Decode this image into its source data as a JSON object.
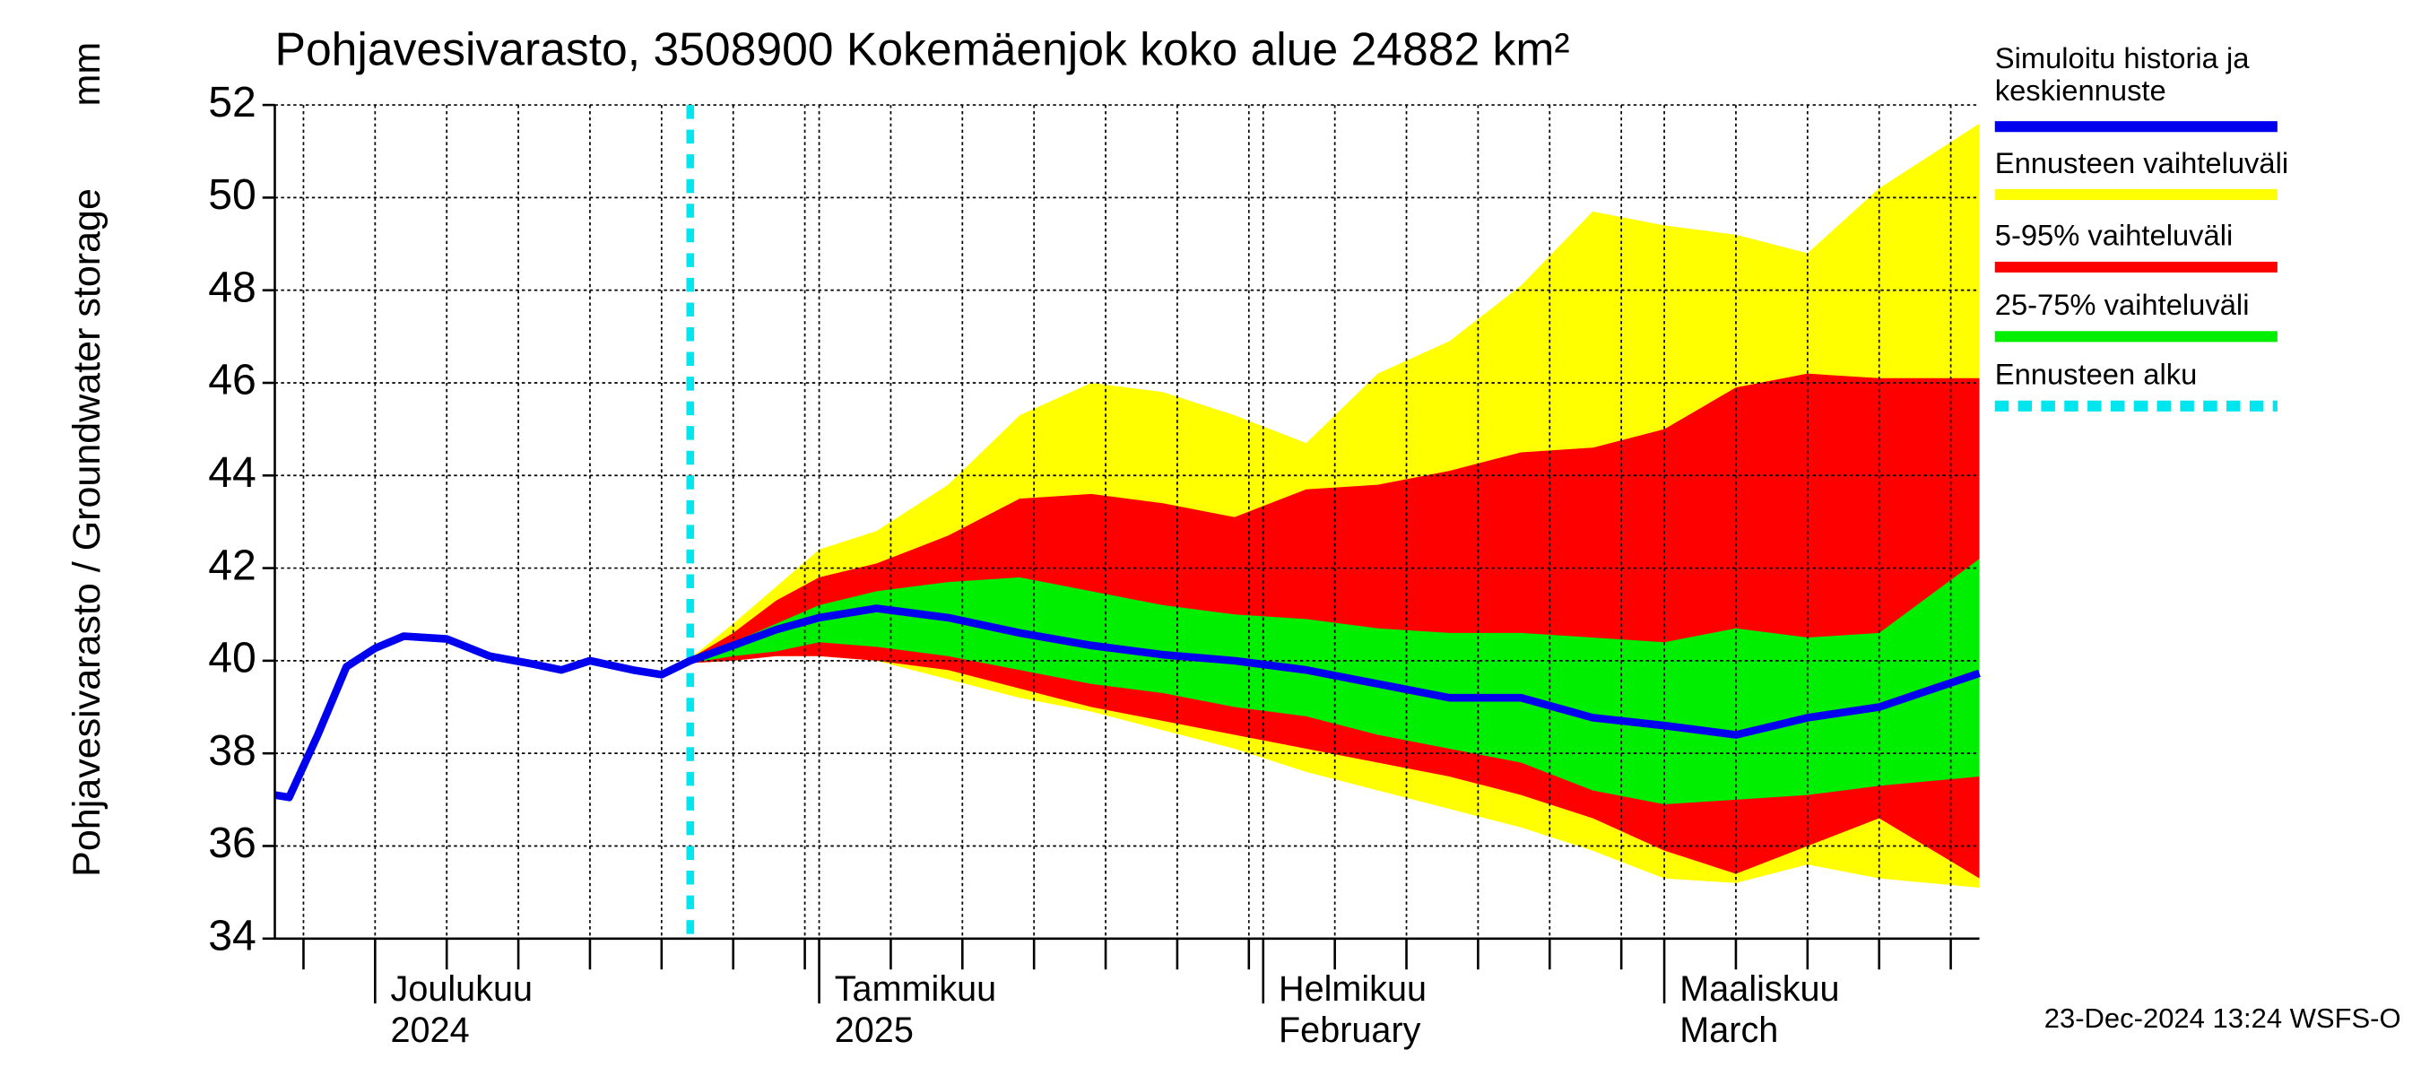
{
  "chart_data": {
    "type": "band",
    "title": "Pohjavesivarasto, 3508900 Kokemäenjok koko alue 24882 km²",
    "ylabel": "Pohjavesivarasto / Groundwater storage",
    "yunit": "mm",
    "footer": "23-Dec-2024 13:24 WSFS-O",
    "xlim": [
      "2024-11-24",
      "2025-03-23"
    ],
    "xticks": [
      {
        "value": "2024-12-01",
        "label": [
          "Joulukuu",
          "2024"
        ]
      },
      {
        "value": "2025-01-01",
        "label": [
          "Tammikuu",
          "2025"
        ]
      },
      {
        "value": "2025-02-01",
        "label": [
          "Helmikuu",
          "February"
        ]
      },
      {
        "value": "2025-03-01",
        "label": [
          "Maaliskuu",
          "March"
        ]
      }
    ],
    "xgrid": [
      "2024-11-26",
      "2024-12-06",
      "2024-12-11",
      "2024-12-16",
      "2024-12-21",
      "2024-12-26",
      "2024-12-31",
      "2025-01-06",
      "2025-01-11",
      "2025-01-16",
      "2025-01-21",
      "2025-01-26",
      "2025-01-31",
      "2025-02-06",
      "2025-02-11",
      "2025-02-16",
      "2025-02-21",
      "2025-02-26",
      "2025-03-06",
      "2025-03-11",
      "2025-03-16",
      "2025-03-21"
    ],
    "ylim": [
      34,
      52
    ],
    "yticks": [
      34,
      36,
      38,
      40,
      42,
      44,
      46,
      48,
      50,
      52
    ],
    "grid": true,
    "series": [
      {
        "name": "Simuloitu historia ja keskiennuste",
        "kind": "line",
        "color": "#0000ee",
        "x": [
          "2024-11-24",
          "2024-11-25",
          "2024-11-27",
          "2024-11-29",
          "2024-12-01",
          "2024-12-03",
          "2024-12-06",
          "2024-12-09",
          "2024-12-12",
          "2024-12-14",
          "2024-12-16",
          "2024-12-19",
          "2024-12-21",
          "2024-12-23",
          "2024-12-26",
          "2024-12-29",
          "2025-01-01",
          "2025-01-05",
          "2025-01-10",
          "2025-01-15",
          "2025-01-20",
          "2025-01-25",
          "2025-01-30",
          "2025-02-04",
          "2025-02-09",
          "2025-02-14",
          "2025-02-19",
          "2025-02-24",
          "2025-03-01",
          "2025-03-06",
          "2025-03-11",
          "2025-03-16",
          "2025-03-23"
        ],
        "values": [
          37.1,
          37.05,
          38.4,
          39.87,
          40.27,
          40.53,
          40.47,
          40.1,
          39.93,
          39.8,
          40.0,
          39.8,
          39.7,
          40.0,
          40.33,
          40.67,
          40.93,
          41.13,
          40.93,
          40.6,
          40.33,
          40.13,
          40.0,
          39.8,
          39.5,
          39.2,
          39.2,
          38.77,
          38.6,
          38.4,
          38.77,
          39.0,
          39.73
        ]
      },
      {
        "name": "Ennusteen vaihteluväli",
        "kind": "band",
        "color": "#ffff00",
        "x": [
          "2024-12-23",
          "2024-12-26",
          "2024-12-29",
          "2025-01-01",
          "2025-01-05",
          "2025-01-10",
          "2025-01-15",
          "2025-01-20",
          "2025-01-25",
          "2025-01-30",
          "2025-02-04",
          "2025-02-09",
          "2025-02-14",
          "2025-02-19",
          "2025-02-24",
          "2025-03-01",
          "2025-03-06",
          "2025-03-11",
          "2025-03-16",
          "2025-03-23"
        ],
        "low": [
          39.95,
          40.0,
          40.1,
          40.1,
          40.0,
          39.6,
          39.2,
          38.9,
          38.5,
          38.1,
          37.6,
          37.2,
          36.8,
          36.4,
          35.9,
          35.3,
          35.2,
          35.6,
          35.3,
          35.1
        ],
        "high": [
          40.05,
          40.8,
          41.6,
          42.4,
          42.8,
          43.8,
          45.3,
          46.0,
          45.8,
          45.3,
          44.7,
          46.2,
          46.9,
          48.1,
          49.7,
          49.4,
          49.2,
          48.8,
          50.2,
          51.6
        ]
      },
      {
        "name": "5-95% vaihteluväli",
        "kind": "band",
        "color": "#ff0000",
        "x": [
          "2024-12-23",
          "2024-12-26",
          "2024-12-29",
          "2025-01-01",
          "2025-01-05",
          "2025-01-10",
          "2025-01-15",
          "2025-01-20",
          "2025-01-25",
          "2025-01-30",
          "2025-02-04",
          "2025-02-09",
          "2025-02-14",
          "2025-02-19",
          "2025-02-24",
          "2025-03-01",
          "2025-03-06",
          "2025-03-11",
          "2025-03-16",
          "2025-03-23"
        ],
        "low": [
          39.95,
          40.0,
          40.1,
          40.1,
          40.0,
          39.8,
          39.4,
          39.0,
          38.7,
          38.4,
          38.1,
          37.8,
          37.5,
          37.1,
          36.6,
          35.9,
          35.4,
          36.0,
          36.6,
          35.3
        ],
        "high": [
          40.05,
          40.6,
          41.3,
          41.8,
          42.1,
          42.7,
          43.5,
          43.6,
          43.4,
          43.1,
          43.7,
          43.8,
          44.1,
          44.5,
          44.6,
          45.0,
          45.9,
          46.2,
          46.1,
          46.1
        ]
      },
      {
        "name": "25-75% vaihteluväli",
        "kind": "band",
        "color": "#00ee00",
        "x": [
          "2024-12-23",
          "2024-12-26",
          "2024-12-29",
          "2025-01-01",
          "2025-01-05",
          "2025-01-10",
          "2025-01-15",
          "2025-01-20",
          "2025-01-25",
          "2025-01-30",
          "2025-02-04",
          "2025-02-09",
          "2025-02-14",
          "2025-02-19",
          "2025-02-24",
          "2025-03-01",
          "2025-03-06",
          "2025-03-11",
          "2025-03-16",
          "2025-03-23"
        ],
        "low": [
          39.95,
          40.1,
          40.2,
          40.4,
          40.3,
          40.1,
          39.8,
          39.5,
          39.3,
          39.0,
          38.8,
          38.4,
          38.1,
          37.8,
          37.2,
          36.9,
          37.0,
          37.1,
          37.3,
          37.5
        ],
        "high": [
          40.05,
          40.4,
          40.8,
          41.2,
          41.5,
          41.7,
          41.8,
          41.5,
          41.2,
          41.0,
          40.9,
          40.7,
          40.6,
          40.6,
          40.5,
          40.4,
          40.7,
          40.5,
          40.6,
          42.2
        ]
      },
      {
        "name": "Ennusteen alku",
        "kind": "vline",
        "color": "#00e5ee",
        "x": "2024-12-23"
      }
    ]
  }
}
